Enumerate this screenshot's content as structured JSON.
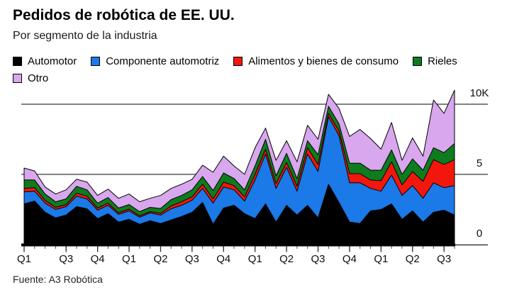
{
  "header": {
    "title": "Pedidos de robótica de EE. UU.",
    "subtitle": "Por segmento de la industria"
  },
  "source": "Fuente: A3 Robótica",
  "chart_data": {
    "type": "area",
    "stacked": true,
    "title": "Pedidos de robótica de EE. UU.",
    "subtitle": "Por segmento de la industria",
    "unit": "thousands of orders (K)",
    "legend_position": "top",
    "grid": "horizontal",
    "ylim": [
      0,
      11.2
    ],
    "y_ticks": [
      {
        "label": "0",
        "value": 0
      },
      {
        "label": "5",
        "value": 5
      },
      {
        "label": "10K",
        "value": 10
      }
    ],
    "gridline_values": [
      5,
      10
    ],
    "x_tick_labels": [
      "Q1",
      "Q3",
      "Q4",
      "Q1",
      "Q2",
      "Q3",
      "Q4",
      "Q1",
      "Q2",
      "Q3",
      "Q4",
      "Q1",
      "Q2",
      "Q3"
    ],
    "x_tick_month_index": [
      0,
      4,
      7,
      10,
      13,
      16,
      19,
      22,
      25,
      28,
      31,
      34,
      37,
      40
    ],
    "n_points": 42,
    "series": [
      {
        "name": "Automotor",
        "color": "#000000",
        "values": [
          2.9,
          3.1,
          2.3,
          1.9,
          2.1,
          2.7,
          2.55,
          1.85,
          2.2,
          1.6,
          1.8,
          1.45,
          1.7,
          1.5,
          1.75,
          2.0,
          2.3,
          3.0,
          1.45,
          2.6,
          2.8,
          2.2,
          1.85,
          2.9,
          1.6,
          2.8,
          2.1,
          2.8,
          1.9,
          4.3,
          3.0,
          1.6,
          1.5,
          2.4,
          2.5,
          2.9,
          1.8,
          2.4,
          1.6,
          2.3,
          2.45,
          2.1
        ]
      },
      {
        "name": "Componente automotriz",
        "color": "#1b79e8",
        "values": [
          0.85,
          0.7,
          0.65,
          0.6,
          0.6,
          0.75,
          0.7,
          0.6,
          0.6,
          0.55,
          0.6,
          0.5,
          0.55,
          0.6,
          0.8,
          0.8,
          0.85,
          1.0,
          1.5,
          1.5,
          1.1,
          0.9,
          2.75,
          3.55,
          2.4,
          2.7,
          1.7,
          3.65,
          3.3,
          4.8,
          4.75,
          2.8,
          2.9,
          1.6,
          1.3,
          2.05,
          1.7,
          1.8,
          1.7,
          2.1,
          1.6,
          2.1
        ]
      },
      {
        "name": "Alimentos y bienes de consumo",
        "color": "#f2170c",
        "values": [
          0.25,
          0.25,
          0.2,
          0.15,
          0.15,
          0.2,
          0.2,
          0.15,
          0.15,
          0.12,
          0.12,
          0.1,
          0.1,
          0.12,
          0.2,
          0.25,
          0.25,
          0.3,
          0.3,
          0.35,
          0.3,
          0.3,
          0.4,
          0.35,
          0.35,
          0.35,
          0.35,
          0.45,
          0.5,
          0.25,
          0.35,
          0.65,
          0.65,
          0.6,
          0.75,
          0.95,
          0.75,
          1.0,
          1.2,
          1.65,
          1.65,
          1.85
        ]
      },
      {
        "name": "Rieles",
        "color": "#0e7c1e",
        "values": [
          0.6,
          0.55,
          0.45,
          0.4,
          0.4,
          0.5,
          0.45,
          0.35,
          0.4,
          0.33,
          0.33,
          0.3,
          0.3,
          0.35,
          0.45,
          0.45,
          0.5,
          0.55,
          0.6,
          0.65,
          0.5,
          0.5,
          0.6,
          0.7,
          0.55,
          0.65,
          0.55,
          0.5,
          0.7,
          0.5,
          0.5,
          0.75,
          0.75,
          0.7,
          0.75,
          0.85,
          0.75,
          0.9,
          0.8,
          0.85,
          0.85,
          1.15
        ]
      },
      {
        "name": "Otro",
        "color": "#d8a7ed",
        "values": [
          0.85,
          0.65,
          0.5,
          0.55,
          0.65,
          0.5,
          0.55,
          0.55,
          0.6,
          0.7,
          0.75,
          0.7,
          0.65,
          0.93,
          0.8,
          0.8,
          0.75,
          0.8,
          1.3,
          1.2,
          0.9,
          1.1,
          1.3,
          0.8,
          1.1,
          0.9,
          1.2,
          1.1,
          1.1,
          0.85,
          1.1,
          1.9,
          2.4,
          2.25,
          1.5,
          1.95,
          1.0,
          1.5,
          1.0,
          3.4,
          2.8,
          3.8
        ]
      }
    ]
  }
}
